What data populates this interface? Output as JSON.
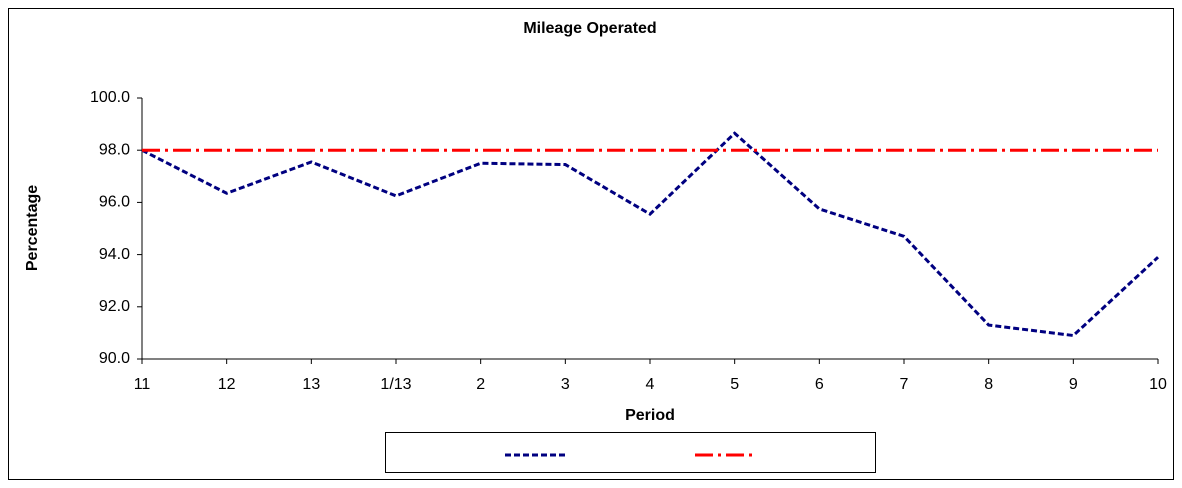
{
  "chart_data": {
    "type": "line",
    "title": "Mileage Operated",
    "x_label": "Period",
    "y_label": "Percentage",
    "categories": [
      "11",
      "12",
      "13",
      "1/13",
      "2",
      "3",
      "4",
      "5",
      "6",
      "7",
      "8",
      "9",
      "10"
    ],
    "series": [
      {
        "color": "#000080",
        "dash": "6,3",
        "values": [
          98.0,
          96.35,
          97.55,
          96.25,
          97.5,
          97.45,
          95.55,
          98.65,
          95.75,
          94.7,
          91.3,
          90.9,
          93.9
        ]
      },
      {
        "color": "#ff0000",
        "dash": "18,5,3,5",
        "values": [
          98,
          98,
          98,
          98,
          98,
          98,
          98,
          98,
          98,
          98,
          98,
          98,
          98
        ]
      }
    ],
    "ylim": [
      90,
      100
    ],
    "yticks": [
      {
        "value": 90,
        "label": "90.0"
      },
      {
        "value": 92,
        "label": "92.0"
      },
      {
        "value": 94,
        "label": "94.0"
      },
      {
        "value": 96,
        "label": "96.0"
      },
      {
        "value": 98,
        "label": "98.0"
      },
      {
        "value": 100,
        "label": "100.0"
      }
    ],
    "legend": "bottom"
  }
}
